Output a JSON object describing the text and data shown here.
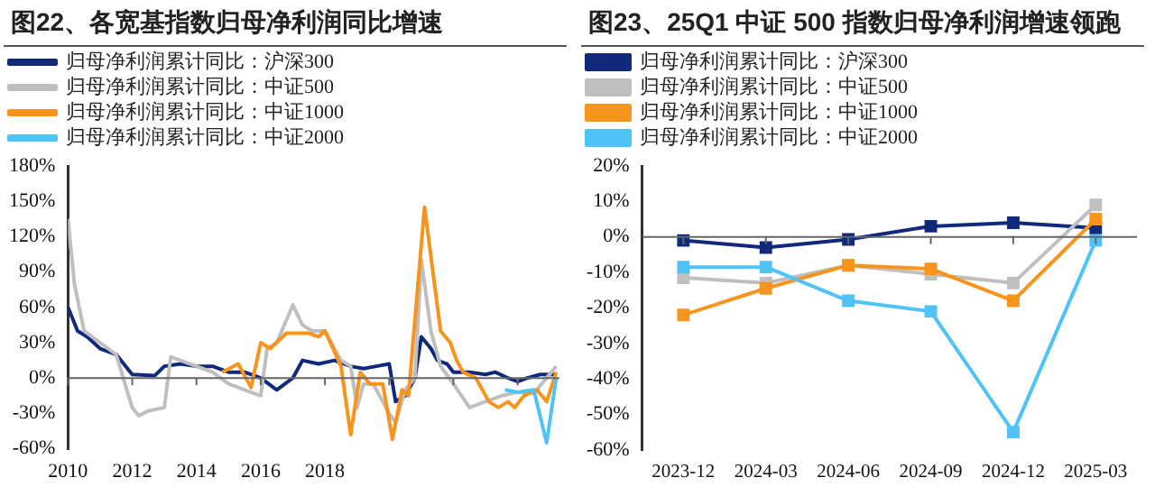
{
  "chart_data": [
    {
      "type": "line",
      "title": "图22、各宽基指数归母净利润同比增速",
      "legend": "top",
      "marker": "none",
      "line_style": "solid",
      "xlim": [
        2010,
        2025.3
      ],
      "xticks": [
        2010,
        2012,
        2014,
        2016,
        2018,
        {
          "value": 2020,
          "label": null
        },
        {
          "value": 2022,
          "label": null
        },
        {
          "value": 2024,
          "label": null
        }
      ],
      "ylim": [
        -60,
        180
      ],
      "yticks": [
        {
          "value": -60,
          "label": "-60%"
        },
        {
          "value": -30,
          "label": "-30%"
        },
        {
          "value": 0,
          "label": "0%"
        },
        {
          "value": 30,
          "label": "30%"
        },
        {
          "value": 60,
          "label": "60%"
        },
        {
          "value": 90,
          "label": "90%"
        },
        {
          "value": 120,
          "label": "120%"
        },
        {
          "value": 150,
          "label": "150%"
        },
        {
          "value": 180,
          "label": "180%"
        }
      ],
      "series": [
        {
          "name": "归母净利润累计同比：沪深300",
          "color": "#10297a",
          "x": [
            2010.0,
            2010.3,
            2010.6,
            2011.0,
            2011.5,
            2012.0,
            2012.7,
            2013.0,
            2013.5,
            2014.0,
            2014.5,
            2015.0,
            2015.5,
            2016.0,
            2016.5,
            2017.0,
            2017.3,
            2017.8,
            2018.3,
            2018.8,
            2019.2,
            2019.6,
            2020.0,
            2020.2,
            2020.5,
            2020.8,
            2021.0,
            2021.3,
            2021.5,
            2021.8,
            2022.0,
            2022.5,
            2023.0,
            2023.3,
            2023.7,
            2024.0,
            2024.3,
            2024.7,
            2025.2
          ],
          "values": [
            60,
            40,
            35,
            25,
            20,
            3,
            2,
            10,
            12,
            10,
            10,
            5,
            5,
            0,
            -10,
            0,
            15,
            12,
            15,
            10,
            8,
            10,
            12,
            -20,
            -15,
            0,
            35,
            25,
            15,
            12,
            5,
            5,
            3,
            5,
            0,
            -3,
            0,
            3,
            3
          ]
        },
        {
          "name": "归母净利润累计同比：中证500",
          "color": "#bfbfbf",
          "x": [
            2010.0,
            2010.2,
            2010.5,
            2011.0,
            2011.5,
            2012.0,
            2012.2,
            2012.5,
            2013.0,
            2013.2,
            2013.5,
            2014.0,
            2014.5,
            2015.0,
            2015.5,
            2016.0,
            2016.2,
            2016.5,
            2017.0,
            2017.3,
            2017.6,
            2018.0,
            2018.5,
            2018.8,
            2019.0,
            2019.2,
            2019.5,
            2020.0,
            2020.2,
            2020.5,
            2020.8,
            2021.0,
            2021.3,
            2021.6,
            2022.0,
            2022.5,
            2023.0,
            2023.5,
            2024.0,
            2024.5,
            2025.2
          ],
          "values": [
            135,
            80,
            40,
            30,
            20,
            -25,
            -32,
            -28,
            -25,
            18,
            15,
            10,
            5,
            -5,
            -10,
            -15,
            25,
            30,
            62,
            45,
            40,
            40,
            15,
            10,
            -25,
            -5,
            -5,
            -30,
            -38,
            -10,
            0,
            100,
            40,
            10,
            -5,
            -25,
            -20,
            -15,
            -12,
            -13,
            10
          ]
        },
        {
          "name": "归母净利润累计同比：中证1000",
          "color": "#f7941d",
          "x": [
            2014.8,
            2015.3,
            2015.7,
            2016.0,
            2016.3,
            2016.8,
            2017.5,
            2017.8,
            2018.0,
            2018.5,
            2018.8,
            2019.1,
            2019.4,
            2019.8,
            2020.1,
            2020.4,
            2020.6,
            2021.1,
            2021.6,
            2021.9,
            2022.1,
            2022.3,
            2022.7,
            2023.1,
            2023.4,
            2023.7,
            2023.9,
            2024.2,
            2024.6,
            2024.9,
            2025.2
          ],
          "values": [
            5,
            12,
            -8,
            30,
            25,
            38,
            38,
            35,
            40,
            10,
            -48,
            5,
            -5,
            -5,
            -52,
            -10,
            -15,
            145,
            40,
            30,
            15,
            5,
            0,
            -20,
            -25,
            -20,
            -25,
            -15,
            -10,
            -20,
            5
          ]
        },
        {
          "name": "归母净利润累计同比：中证2000",
          "color": "#4fc3f7",
          "x": [
            2023.6,
            2024.0,
            2024.5,
            2024.9,
            2025.2
          ],
          "values": [
            -10,
            -12,
            -10,
            -55,
            0
          ]
        }
      ]
    },
    {
      "type": "line",
      "title": "图23、25Q1 中证 500 指数归母净利润增速领跑",
      "legend": "top",
      "marker": "square",
      "line_style": "solid",
      "categories": [
        "2023-12",
        "2024-03",
        "2024-06",
        "2024-09",
        "2024-12",
        "2025-03"
      ],
      "ylim": [
        -60,
        20
      ],
      "yticks": [
        {
          "value": -60,
          "label": "-60%"
        },
        {
          "value": -50,
          "label": "-50%"
        },
        {
          "value": -40,
          "label": "-40%"
        },
        {
          "value": -30,
          "label": "-30%"
        },
        {
          "value": -20,
          "label": "-20%"
        },
        {
          "value": -10,
          "label": "-10%"
        },
        {
          "value": 0,
          "label": "0%"
        },
        {
          "value": 10,
          "label": "10%"
        },
        {
          "value": 20,
          "label": "20%"
        }
      ],
      "series": [
        {
          "name": "归母净利润累计同比：沪深300",
          "color": "#10297a",
          "values": [
            -1,
            -3,
            -0.7,
            3,
            4,
            2.5
          ]
        },
        {
          "name": "归母净利润累计同比：中证500",
          "color": "#bfbfbf",
          "values": [
            -11.5,
            -13,
            -8,
            -10.5,
            -13,
            9
          ]
        },
        {
          "name": "归母净利润累计同比：中证1000",
          "color": "#f7941d",
          "values": [
            -22,
            -14.5,
            -8,
            -9,
            -18,
            5
          ]
        },
        {
          "name": "归母净利润累计同比：中证2000",
          "color": "#4fc3f7",
          "values": [
            -8.5,
            -8.5,
            -18,
            -21,
            -55,
            -1
          ]
        }
      ]
    }
  ]
}
